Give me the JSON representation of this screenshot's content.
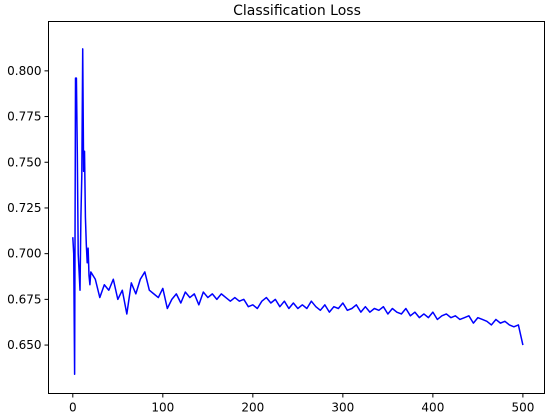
{
  "chart_data": {
    "type": "line",
    "title": "Classification Loss",
    "xlabel": "",
    "ylabel": "",
    "xlim": [
      -27,
      524
    ],
    "ylim": [
      0.6235,
      0.827
    ],
    "x_ticks": [
      0,
      100,
      200,
      300,
      400,
      500
    ],
    "y_ticks": [
      0.65,
      0.675,
      0.7,
      0.725,
      0.75,
      0.775,
      0.8
    ],
    "x_tick_labels": [
      "0",
      "100",
      "200",
      "300",
      "400",
      "500"
    ],
    "y_tick_labels": [
      "0.650",
      "0.675",
      "0.700",
      "0.725",
      "0.750",
      "0.775",
      "0.800"
    ],
    "grid": false,
    "series": [
      {
        "color": "#0000ff",
        "x": [
          0,
          1,
          2,
          3,
          4,
          5,
          6,
          7,
          8,
          9,
          10,
          11,
          12,
          13,
          14,
          15,
          16,
          17,
          18,
          19,
          20,
          25,
          30,
          35,
          40,
          45,
          50,
          55,
          60,
          65,
          70,
          75,
          80,
          85,
          90,
          95,
          100,
          105,
          110,
          115,
          120,
          125,
          130,
          135,
          140,
          145,
          150,
          155,
          160,
          165,
          170,
          175,
          180,
          185,
          190,
          195,
          200,
          205,
          210,
          215,
          220,
          225,
          230,
          235,
          240,
          245,
          250,
          255,
          260,
          265,
          270,
          275,
          280,
          285,
          290,
          295,
          300,
          305,
          310,
          315,
          320,
          325,
          330,
          335,
          340,
          345,
          350,
          355,
          360,
          365,
          370,
          375,
          380,
          385,
          390,
          395,
          400,
          405,
          410,
          415,
          420,
          425,
          430,
          435,
          440,
          445,
          450,
          455,
          460,
          465,
          470,
          475,
          480,
          485,
          490,
          495,
          500
        ],
        "y": [
          0.709,
          0.7,
          0.634,
          0.796,
          0.796,
          0.755,
          0.7,
          0.69,
          0.68,
          0.72,
          0.743,
          0.812,
          0.745,
          0.756,
          0.72,
          0.705,
          0.695,
          0.703,
          0.688,
          0.683,
          0.69,
          0.686,
          0.676,
          0.683,
          0.68,
          0.686,
          0.675,
          0.68,
          0.667,
          0.684,
          0.678,
          0.686,
          0.69,
          0.68,
          0.678,
          0.676,
          0.681,
          0.67,
          0.675,
          0.678,
          0.673,
          0.679,
          0.676,
          0.678,
          0.672,
          0.679,
          0.676,
          0.678,
          0.675,
          0.678,
          0.676,
          0.674,
          0.676,
          0.674,
          0.675,
          0.671,
          0.672,
          0.67,
          0.674,
          0.676,
          0.673,
          0.675,
          0.671,
          0.674,
          0.67,
          0.673,
          0.67,
          0.672,
          0.67,
          0.674,
          0.671,
          0.669,
          0.672,
          0.668,
          0.671,
          0.67,
          0.673,
          0.669,
          0.67,
          0.672,
          0.668,
          0.671,
          0.668,
          0.67,
          0.669,
          0.671,
          0.667,
          0.67,
          0.668,
          0.667,
          0.67,
          0.666,
          0.668,
          0.665,
          0.667,
          0.665,
          0.668,
          0.664,
          0.666,
          0.667,
          0.665,
          0.666,
          0.664,
          0.665,
          0.666,
          0.662,
          0.665,
          0.664,
          0.663,
          0.661,
          0.664,
          0.662,
          0.663,
          0.661,
          0.66,
          0.661,
          0.65
        ]
      }
    ]
  }
}
